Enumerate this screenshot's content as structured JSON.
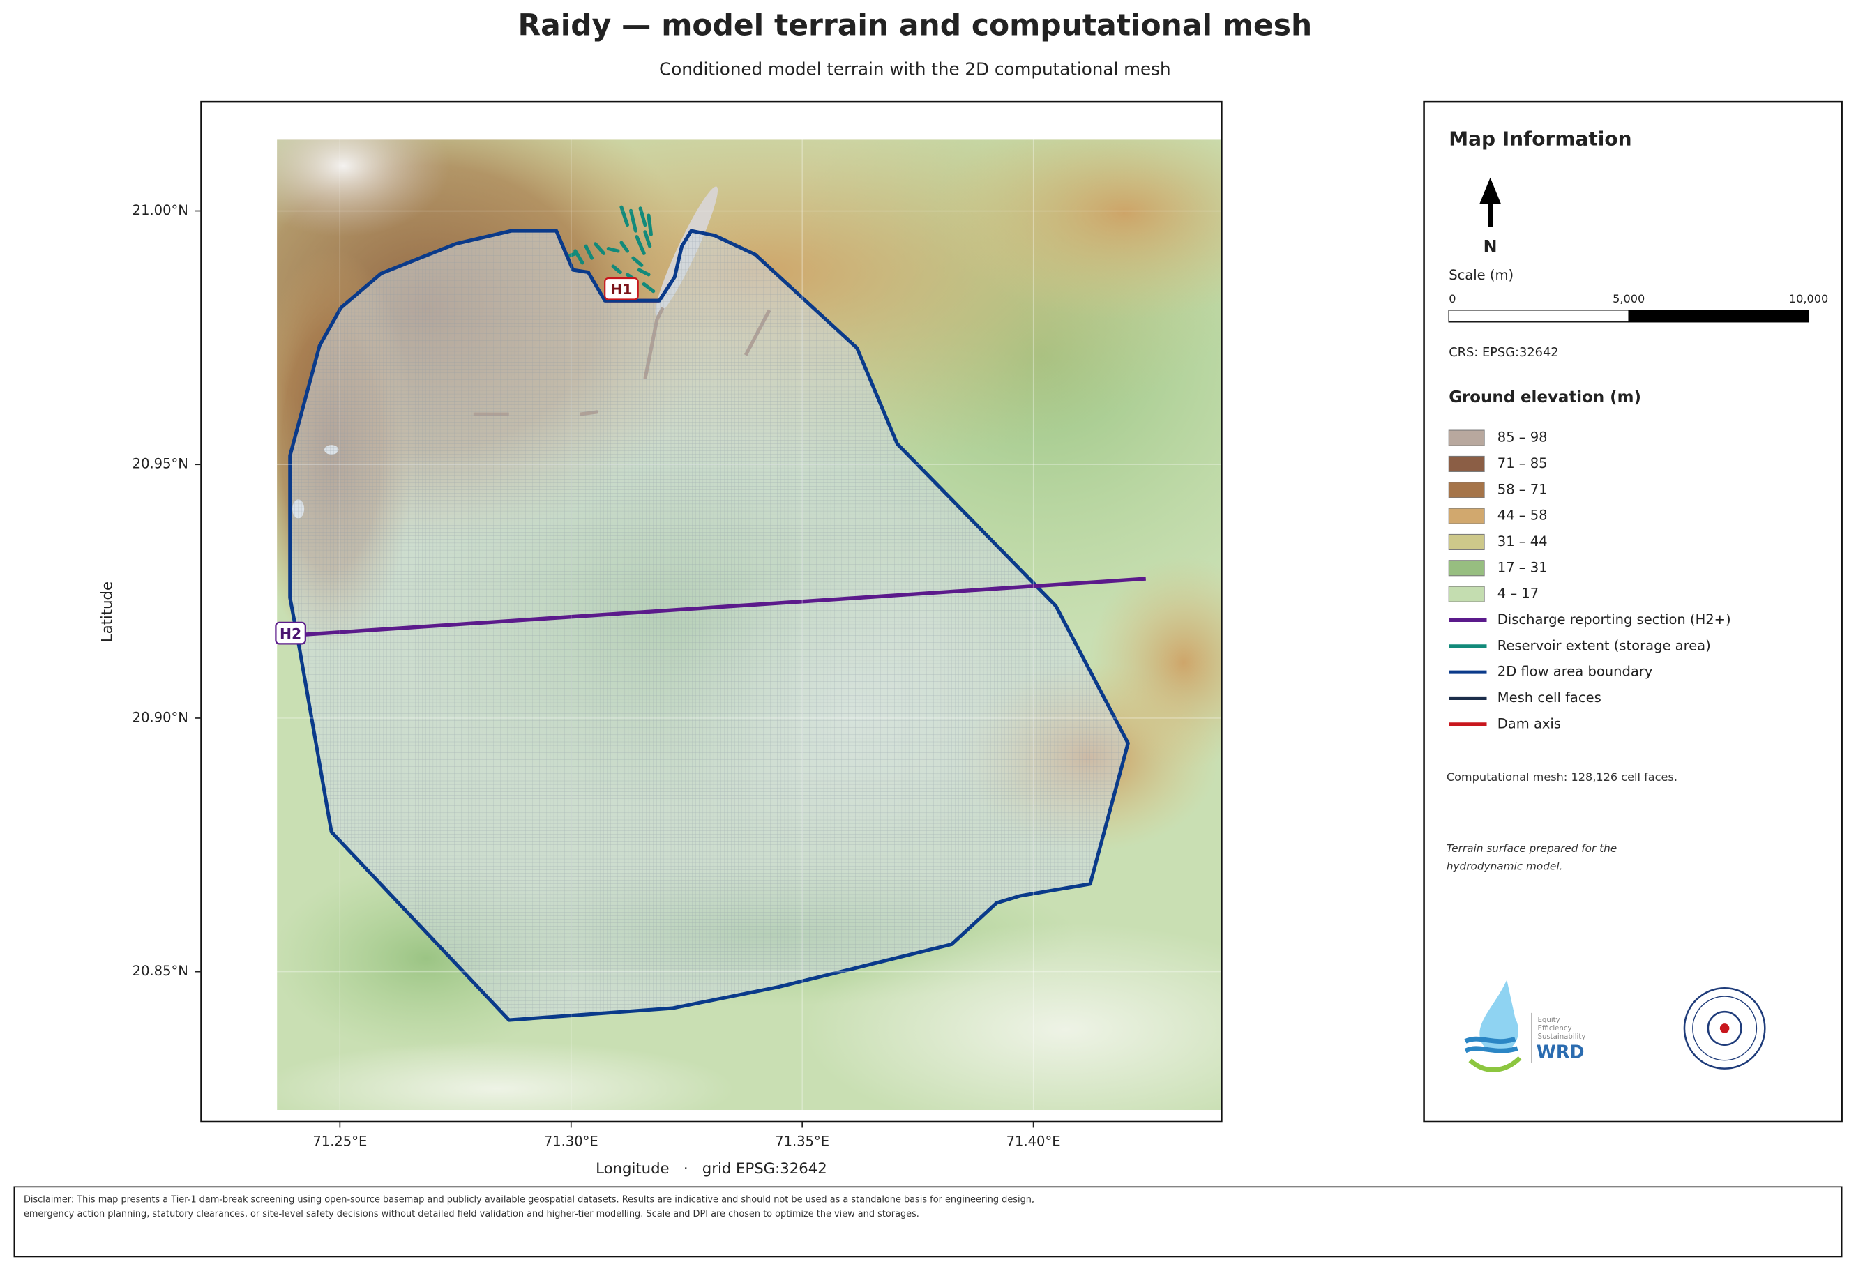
{
  "title": "Raidy — model terrain and computational mesh",
  "subtitle": "Conditioned model terrain with the 2D computational mesh",
  "map": {
    "xlabel": "Longitude   ·   grid EPSG:32642",
    "ylabel": "Latitude",
    "xlim": [
      71.22,
      71.4407
    ],
    "ylim": [
      20.8204,
      21.0215
    ],
    "xticks": [
      {
        "value": 71.25,
        "label": "71.25°E"
      },
      {
        "value": 71.3,
        "label": "71.30°E"
      },
      {
        "value": 71.35,
        "label": "71.35°E"
      },
      {
        "value": 71.4,
        "label": "71.40°E"
      }
    ],
    "yticks": [
      {
        "value": 20.85,
        "label": "20.85°N"
      },
      {
        "value": 20.9,
        "label": "20.90°N"
      },
      {
        "value": 20.95,
        "label": "20.95°N"
      },
      {
        "value": 21.0,
        "label": "21.00°N"
      }
    ],
    "grid": true,
    "markers": [
      "H1",
      "H2"
    ]
  },
  "panel": {
    "title": "Map Information",
    "north": "N",
    "scale": {
      "title": "Scale (m)",
      "lim": [
        0,
        10000
      ],
      "ticks": [
        0,
        {
          "value": 5000,
          "label": "5,000"
        },
        {
          "value": 10000,
          "label": "10,000"
        }
      ]
    },
    "crs": "CRS: EPSG:32642",
    "legend": {
      "title": "Ground elevation (m)",
      "items": [
        {
          "name": "85 – 98",
          "color": "#b8a89e",
          "kind": "patch"
        },
        {
          "name": "71 – 85",
          "color": "#8b5e45",
          "kind": "patch"
        },
        {
          "name": "58 – 71",
          "color": "#a57449",
          "kind": "patch"
        },
        {
          "name": "44 – 58",
          "color": "#d1a86e",
          "kind": "patch"
        },
        {
          "name": "31 – 44",
          "color": "#cdc88a",
          "kind": "patch"
        },
        {
          "name": "17 – 31",
          "color": "#97be80",
          "kind": "patch"
        },
        {
          "name": "4 – 17",
          "color": "#c4ddb0",
          "kind": "patch"
        },
        {
          "name": "Discharge reporting section (H2+)",
          "color": "#5b1a8b",
          "kind": "line"
        },
        {
          "name": "Reservoir extent (storage area)",
          "color": "#128a7a",
          "kind": "line"
        },
        {
          "name": "2D flow area boundary",
          "color": "#0a3a8a",
          "kind": "line"
        },
        {
          "name": "Mesh cell faces",
          "color": "#1b2d4a",
          "kind": "line"
        },
        {
          "name": "Dam axis",
          "color": "#c8161d",
          "kind": "line"
        }
      ]
    },
    "notes": [
      "Computational mesh: 128,126 cell faces.",
      "Terrain surface prepared for the hydrodynamic model."
    ]
  },
  "logos": {
    "wrd": [
      "Equity",
      "Efficiency",
      "Sustainability",
      "WRD"
    ]
  },
  "disclaimer": "Disclaimer: This map presents a Tier-1 dam-break screening using open-source basemap and publicly available geospatial datasets. Results are indicative and should not be used as a standalone basis for engineering design, emergency action planning, statutory clearances, or site-level safety decisions without detailed field validation and higher-tier modelling. Scale and DPI are chosen to optimize the view and storages."
}
